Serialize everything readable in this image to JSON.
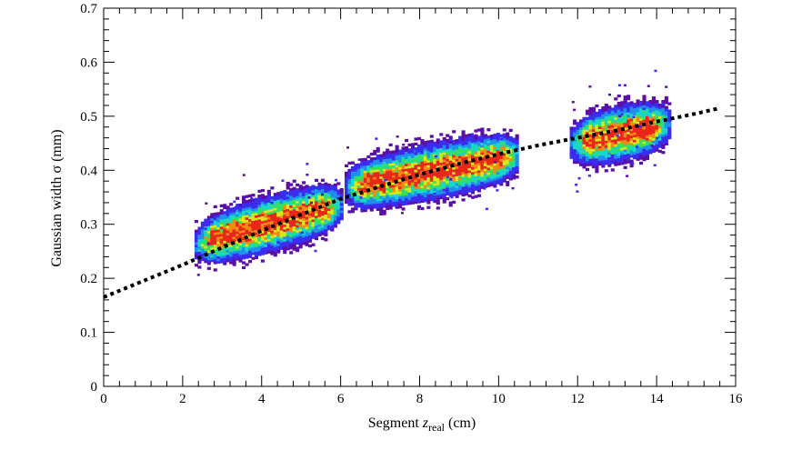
{
  "chart_data": {
    "type": "heatmap",
    "title": "",
    "xlabel_prefix": "Segment ",
    "xlabel_var": "z",
    "xlabel_sub": "real",
    "xlabel_suffix": " (cm)",
    "ylabel": "Gaussian width σ (mm)",
    "xlim": [
      0,
      16
    ],
    "ylim": [
      0,
      0.7
    ],
    "x_ticks": [
      {
        "value": 0,
        "label": "0"
      },
      {
        "value": 2,
        "label": "2"
      },
      {
        "value": 4,
        "label": "4"
      },
      {
        "value": 6,
        "label": "6"
      },
      {
        "value": 8,
        "label": "8"
      },
      {
        "value": 10,
        "label": "10"
      },
      {
        "value": 12,
        "label": "12"
      },
      {
        "value": 14,
        "label": "14"
      },
      {
        "value": 16,
        "label": "16"
      }
    ],
    "y_ticks": [
      {
        "value": 0,
        "label": "0"
      },
      {
        "value": 0.1,
        "label": "0.1"
      },
      {
        "value": 0.2,
        "label": "0.2"
      },
      {
        "value": 0.3,
        "label": "0.3"
      },
      {
        "value": 0.4,
        "label": "0.4"
      },
      {
        "value": 0.5,
        "label": "0.5"
      },
      {
        "value": 0.6,
        "label": "0.6"
      },
      {
        "value": 0.7,
        "label": "0.7"
      }
    ],
    "grid": false,
    "legend": "none",
    "colormap": [
      "#5a0fa6",
      "#3b2cf0",
      "#1f8fef",
      "#18d6c8",
      "#35e05a",
      "#d6e81c",
      "#f08a14",
      "#e8261c"
    ],
    "clusters": [
      {
        "x_range": [
          2.3,
          6.0
        ],
        "y_center_at_start": 0.262,
        "y_center_at_end": 0.335,
        "density": "high"
      },
      {
        "x_range": [
          6.1,
          10.5
        ],
        "y_center_at_start": 0.365,
        "y_center_at_end": 0.427,
        "density": "high"
      },
      {
        "x_range": [
          11.8,
          14.3
        ],
        "y_center_at_start": 0.448,
        "y_center_at_end": 0.485,
        "density": "high"
      }
    ],
    "fit_curve": {
      "style": "dotted",
      "color": "#000000",
      "points": [
        {
          "x": 0.0,
          "y": 0.165
        },
        {
          "x": 1.0,
          "y": 0.195
        },
        {
          "x": 2.0,
          "y": 0.225
        },
        {
          "x": 3.0,
          "y": 0.257
        },
        {
          "x": 4.0,
          "y": 0.288
        },
        {
          "x": 5.0,
          "y": 0.318
        },
        {
          "x": 6.0,
          "y": 0.347
        },
        {
          "x": 7.0,
          "y": 0.37
        },
        {
          "x": 8.0,
          "y": 0.392
        },
        {
          "x": 9.0,
          "y": 0.412
        },
        {
          "x": 10.0,
          "y": 0.43
        },
        {
          "x": 11.0,
          "y": 0.446
        },
        {
          "x": 12.0,
          "y": 0.46
        },
        {
          "x": 13.0,
          "y": 0.474
        },
        {
          "x": 14.0,
          "y": 0.49
        },
        {
          "x": 15.0,
          "y": 0.505
        },
        {
          "x": 15.6,
          "y": 0.515
        }
      ]
    }
  }
}
